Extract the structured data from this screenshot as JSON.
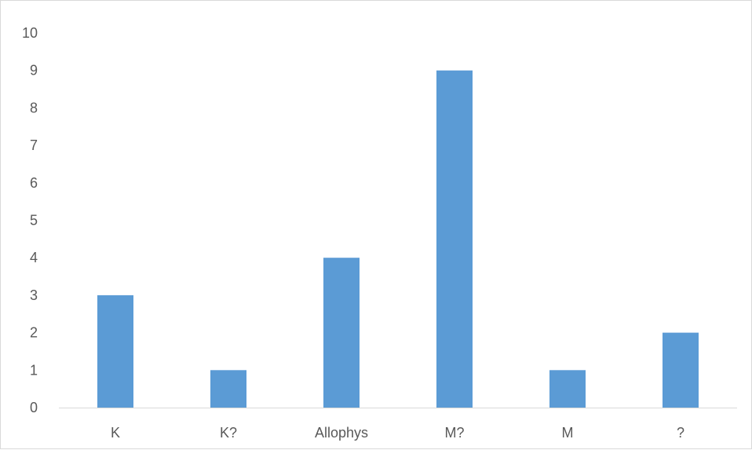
{
  "chart_data": {
    "type": "bar",
    "categories": [
      "K",
      "K?",
      "Allophys",
      "M?",
      "M",
      "?"
    ],
    "values": [
      3,
      1,
      4,
      9,
      1,
      2
    ],
    "title": "",
    "xlabel": "",
    "ylabel": "",
    "ylim": [
      0,
      10
    ],
    "yticks": [
      "0",
      "1",
      "2",
      "3",
      "4",
      "5",
      "6",
      "7",
      "8",
      "9",
      "10"
    ],
    "grid": false,
    "legend": "none",
    "bar_color": "#5b9bd5",
    "axis_color": "#d9d9d9",
    "label_color": "#595959"
  }
}
